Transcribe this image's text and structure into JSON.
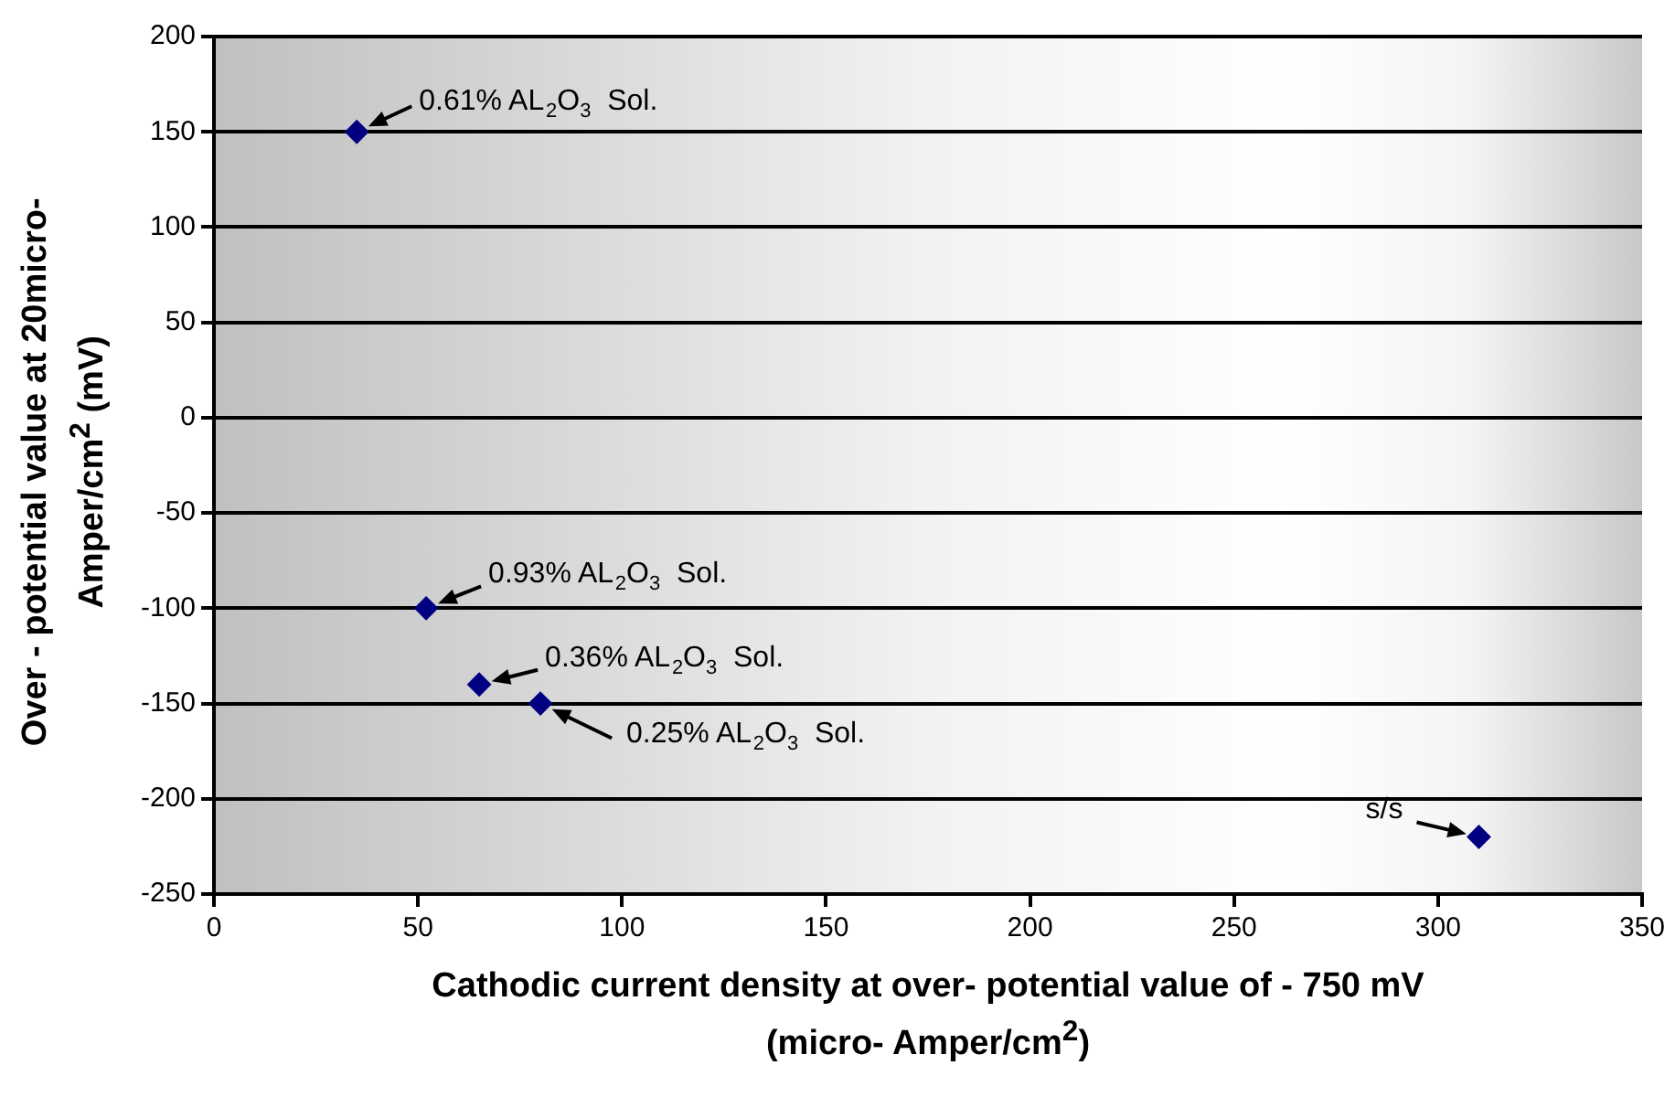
{
  "chart_data": {
    "type": "scatter",
    "xlabel": "Cathodic current density at over- potential value of - 750 mV (micro- Amper/cm$^{2}$)",
    "ylabel": "Over - potential value at 20micro-Amper/cm$^{2}$  (mV)",
    "x": [
      35,
      52,
      65,
      80,
      310
    ],
    "values": [
      150,
      -100,
      -140,
      -150,
      -220
    ],
    "color": "#000080",
    "marker": "diamond",
    "xlim": [
      0,
      350
    ],
    "xticks": [
      0,
      50,
      100,
      150,
      200,
      250,
      300,
      350
    ],
    "ylim": [
      -250,
      200
    ],
    "yticks": [
      -250,
      -200,
      -150,
      -100,
      -50,
      0,
      50,
      100,
      150,
      200
    ],
    "grid": "y",
    "legend": false,
    "annotations": [
      {
        "text": "0.61% AL$_{2}$O$_{3}$  Sol.",
        "x": 35,
        "y": 150
      },
      {
        "text": "0.93% AL$_{2}$O$_{3}$  Sol.",
        "x": 52,
        "y": -100
      },
      {
        "text": "0.36% AL$_{2}$O$_{3}$  Sol.",
        "x": 65,
        "y": -140
      },
      {
        "text": "0.25% AL$_{2}$O$_{3}$  Sol.",
        "x": 80,
        "y": -150
      },
      {
        "text": "s/s",
        "x": 310,
        "y": -220
      }
    ]
  }
}
